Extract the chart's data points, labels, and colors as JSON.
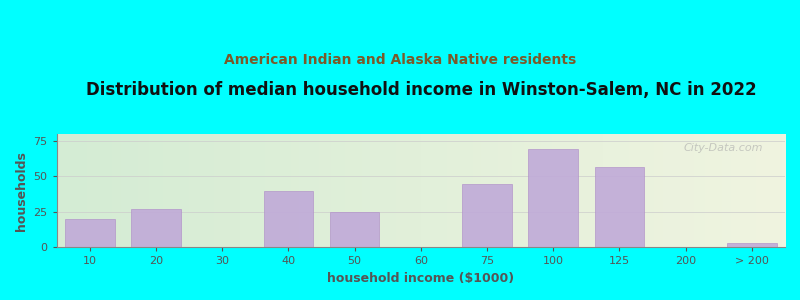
{
  "title": "Distribution of median household income in Winston-Salem, NC in 2022",
  "subtitle": "American Indian and Alaska Native residents",
  "xlabel": "household income ($1000)",
  "ylabel": "households",
  "background_color": "#00FFFF",
  "bar_color": "#c0aad8",
  "bar_edge_color": "#b090c8",
  "watermark": "City-Data.com",
  "categories": [
    "10",
    "20",
    "30",
    "40",
    "50",
    "60",
    "75",
    "100",
    "125",
    "200",
    "> 200"
  ],
  "values": [
    20,
    27,
    0,
    40,
    25,
    0,
    45,
    69,
    57,
    0,
    3
  ],
  "ylim": [
    0,
    80
  ],
  "yticks": [
    0,
    25,
    50,
    75
  ],
  "title_fontsize": 12,
  "subtitle_fontsize": 10,
  "axis_label_fontsize": 9,
  "tick_fontsize": 8,
  "subtitle_color": "#7a5a2a",
  "tick_color": "#555555",
  "ylabel_color": "#555555",
  "xlabel_color": "#555555"
}
